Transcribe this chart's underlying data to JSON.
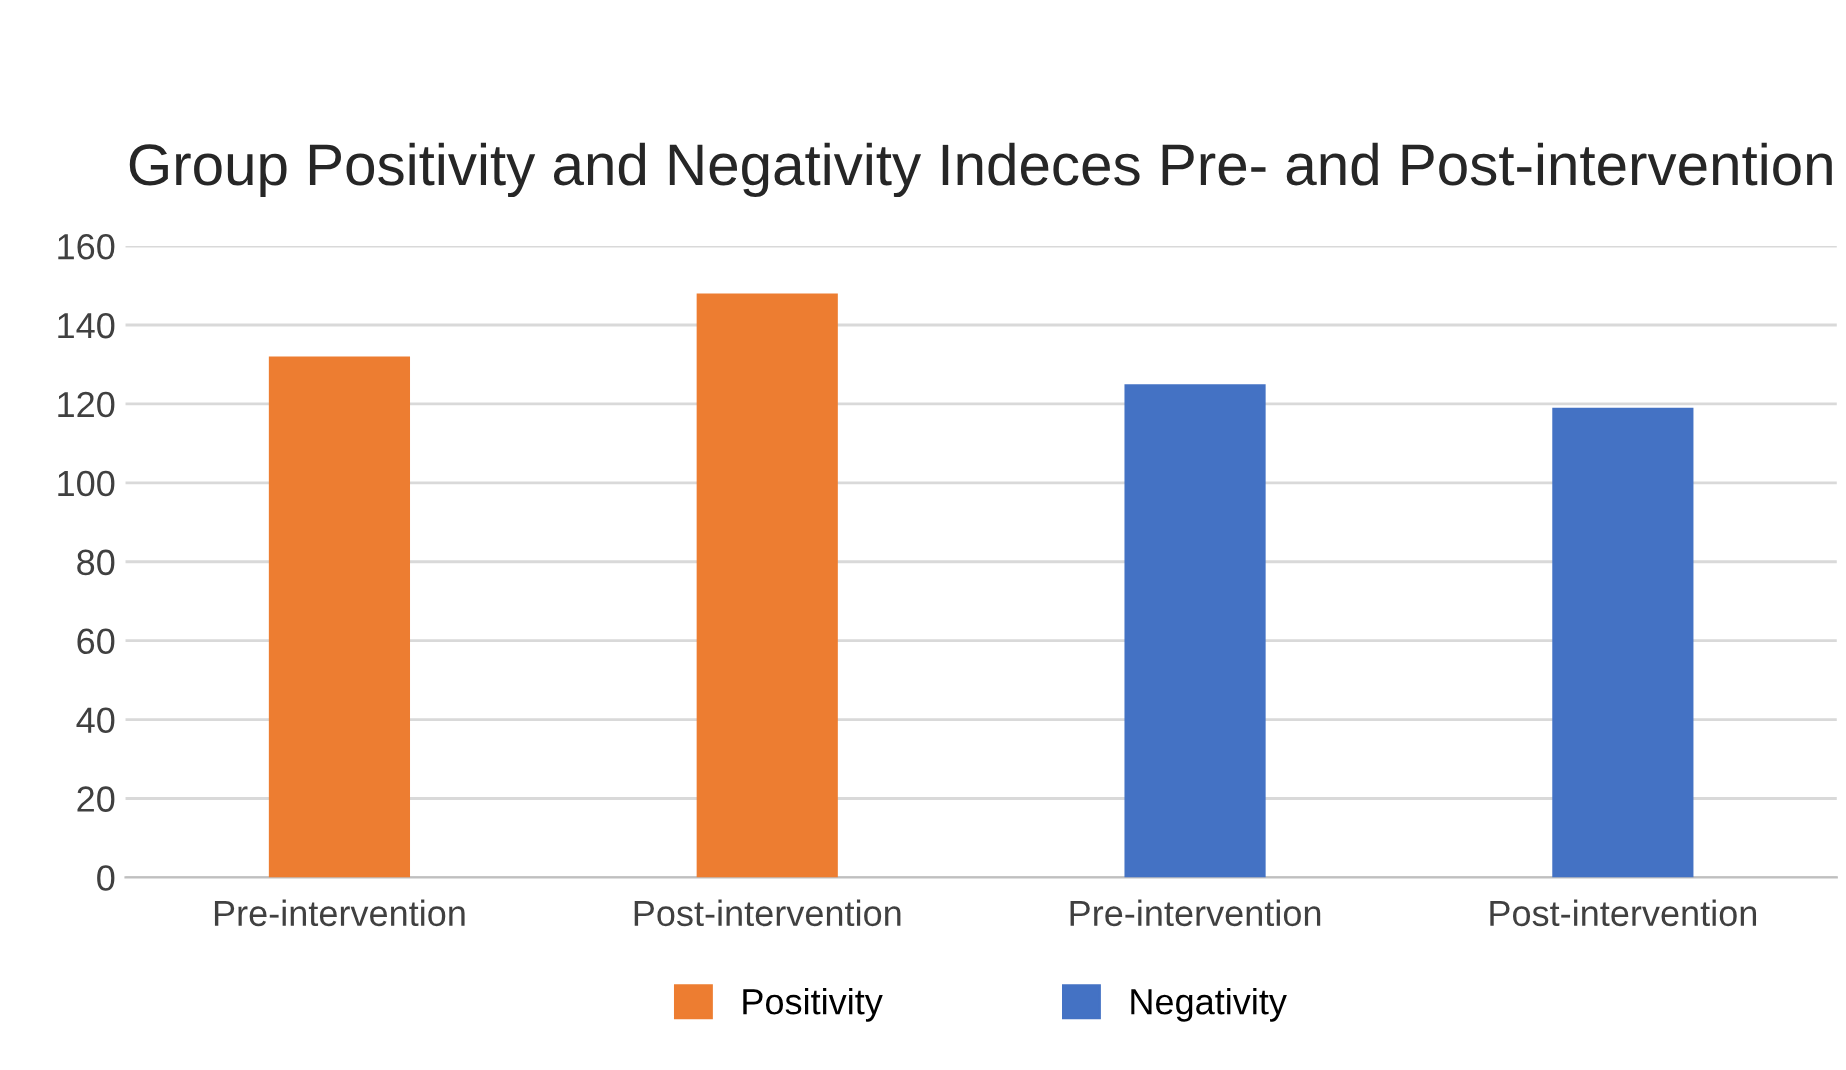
{
  "chart_data": {
    "type": "bar",
    "title": "Group Positivity and Negativity Indeces Pre- and Post-intervention",
    "categories": [
      "Pre-intervention",
      "Post-intervention",
      "Pre-intervention",
      "Post-intervention"
    ],
    "series": [
      {
        "name": "Positivity",
        "color": "#ed7d31",
        "values": [
          132,
          148,
          null,
          null
        ]
      },
      {
        "name": "Negativity",
        "color": "#4472c4",
        "values": [
          null,
          null,
          125,
          119
        ]
      }
    ],
    "ylim": [
      0,
      160
    ],
    "yticks": [
      0,
      20,
      40,
      60,
      80,
      100,
      120,
      140,
      160
    ],
    "grid": "y",
    "legend": "bottom"
  }
}
